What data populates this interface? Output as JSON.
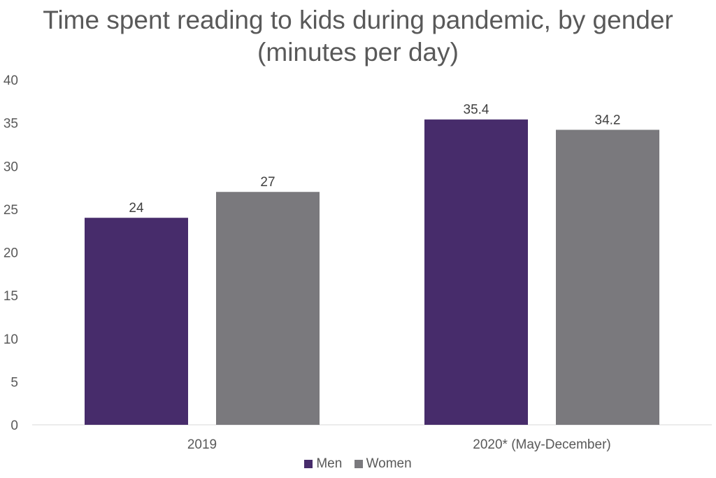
{
  "chart_data": {
    "type": "bar",
    "title": "Time spent reading to kids during pandemic, by gender (minutes per day)",
    "categories": [
      "2019",
      "2020* (May-December)"
    ],
    "series": [
      {
        "name": "Men",
        "values": [
          24,
          35.4
        ],
        "color": "#472c6b"
      },
      {
        "name": "Women",
        "values": [
          27,
          34.2
        ],
        "color": "#7a797d"
      }
    ],
    "data_labels": [
      [
        "24",
        "35.4"
      ],
      [
        "27",
        "34.2"
      ]
    ],
    "ylim": [
      0,
      40
    ],
    "yticks": [
      "0",
      "5",
      "10",
      "15",
      "20",
      "25",
      "30",
      "35",
      "40"
    ],
    "xlabel": "",
    "ylabel": "",
    "grid": false,
    "legend_position": "bottom"
  }
}
